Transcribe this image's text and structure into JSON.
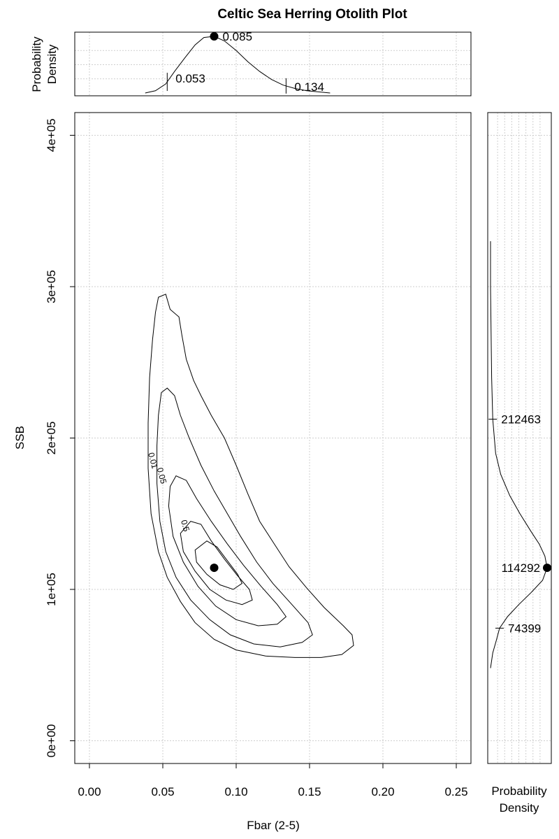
{
  "chart_data": {
    "type": "scatter",
    "title": "Celtic Sea Herring Otolith Plot",
    "xlabel": "Fbar (2-5)",
    "ylabel": "SSB",
    "top_panel_ylabel_line1": "Probability",
    "top_panel_ylabel_line2": "Density",
    "right_panel_xlabel_line1": "Probability",
    "right_panel_xlabel_line2": "Density",
    "xlim": [
      -0.01,
      0.26
    ],
    "ylim": [
      -15000,
      415000
    ],
    "x_ticks": [
      0.0,
      0.05,
      0.1,
      0.15,
      0.2,
      0.25
    ],
    "x_tick_labels": [
      "0.00",
      "0.05",
      "0.10",
      "0.15",
      "0.20",
      "0.25"
    ],
    "y_ticks": [
      0,
      100000,
      200000,
      300000,
      400000
    ],
    "y_tick_labels": [
      "0e+00",
      "1e+05",
      "2e+05",
      "3e+05",
      "4e+05"
    ],
    "grid": true,
    "point_estimate": {
      "fbar": 0.085,
      "ssb": 114292
    },
    "fbar_marginal": {
      "mode": 0.085,
      "mode_label": "0.085",
      "lower": 0.053,
      "lower_label": "0.053",
      "upper": 0.134,
      "upper_label": "0.134",
      "x": [
        0.038,
        0.045,
        0.052,
        0.058,
        0.065,
        0.072,
        0.078,
        0.085,
        0.092,
        0.1,
        0.108,
        0.116,
        0.124,
        0.132,
        0.14,
        0.148,
        0.156,
        0.164
      ],
      "density": [
        0.0,
        0.04,
        0.16,
        0.38,
        0.62,
        0.85,
        0.98,
        1.0,
        0.92,
        0.75,
        0.55,
        0.38,
        0.24,
        0.14,
        0.08,
        0.04,
        0.02,
        0.0
      ]
    },
    "ssb_marginal": {
      "mode": 114292,
      "mode_label": "114292",
      "lower": 74399,
      "lower_label": "74399",
      "upper": 212463,
      "upper_label": "212463",
      "y": [
        48000,
        58000,
        66000,
        74399,
        82000,
        90000,
        98000,
        106000,
        114292,
        122000,
        130000,
        138000,
        150000,
        162000,
        176000,
        190000,
        212463,
        240000,
        270000,
        300000,
        330000
      ],
      "density": [
        0.0,
        0.04,
        0.1,
        0.16,
        0.3,
        0.5,
        0.72,
        0.92,
        1.0,
        0.96,
        0.86,
        0.72,
        0.52,
        0.34,
        0.18,
        0.09,
        0.04,
        0.02,
        0.01,
        0.0,
        0.0
      ]
    },
    "contours": [
      {
        "level": 0.01,
        "label": "0.01",
        "points": [
          [
            0.047,
            293000
          ],
          [
            0.052,
            295000
          ],
          [
            0.055,
            285000
          ],
          [
            0.061,
            280000
          ],
          [
            0.063,
            268000
          ],
          [
            0.066,
            252000
          ],
          [
            0.071,
            238000
          ],
          [
            0.076,
            228000
          ],
          [
            0.083,
            215000
          ],
          [
            0.092,
            200000
          ],
          [
            0.1,
            182000
          ],
          [
            0.108,
            163000
          ],
          [
            0.116,
            145000
          ],
          [
            0.126,
            130000
          ],
          [
            0.136,
            115000
          ],
          [
            0.148,
            101000
          ],
          [
            0.16,
            88000
          ],
          [
            0.173,
            76000
          ],
          [
            0.179,
            70000
          ],
          [
            0.18,
            63000
          ],
          [
            0.172,
            57000
          ],
          [
            0.158,
            55000
          ],
          [
            0.14,
            55000
          ],
          [
            0.12,
            56000
          ],
          [
            0.1,
            60000
          ],
          [
            0.085,
            67000
          ],
          [
            0.072,
            78000
          ],
          [
            0.062,
            92000
          ],
          [
            0.053,
            108000
          ],
          [
            0.047,
            125000
          ],
          [
            0.042,
            150000
          ],
          [
            0.04,
            180000
          ],
          [
            0.04,
            210000
          ],
          [
            0.041,
            240000
          ],
          [
            0.043,
            265000
          ],
          [
            0.045,
            283000
          ],
          [
            0.047,
            293000
          ]
        ]
      },
      {
        "level": 0.05,
        "label": "0.05",
        "points": [
          [
            0.049,
            230000
          ],
          [
            0.053,
            233000
          ],
          [
            0.058,
            228000
          ],
          [
            0.062,
            215000
          ],
          [
            0.068,
            200000
          ],
          [
            0.076,
            182000
          ],
          [
            0.085,
            165000
          ],
          [
            0.094,
            150000
          ],
          [
            0.103,
            135000
          ],
          [
            0.114,
            118000
          ],
          [
            0.125,
            104000
          ],
          [
            0.138,
            90000
          ],
          [
            0.149,
            78000
          ],
          [
            0.152,
            70000
          ],
          [
            0.145,
            65000
          ],
          [
            0.13,
            62000
          ],
          [
            0.112,
            64000
          ],
          [
            0.096,
            70000
          ],
          [
            0.082,
            80000
          ],
          [
            0.069,
            93000
          ],
          [
            0.059,
            108000
          ],
          [
            0.052,
            125000
          ],
          [
            0.048,
            145000
          ],
          [
            0.046,
            170000
          ],
          [
            0.046,
            195000
          ],
          [
            0.047,
            215000
          ],
          [
            0.049,
            230000
          ]
        ]
      },
      {
        "level": 0.2,
        "label": "",
        "points": [
          [
            0.059,
            175000
          ],
          [
            0.066,
            172000
          ],
          [
            0.073,
            160000
          ],
          [
            0.083,
            145000
          ],
          [
            0.094,
            130000
          ],
          [
            0.105,
            116000
          ],
          [
            0.117,
            102000
          ],
          [
            0.128,
            90000
          ],
          [
            0.134,
            82000
          ],
          [
            0.128,
            77000
          ],
          [
            0.115,
            76000
          ],
          [
            0.1,
            80000
          ],
          [
            0.086,
            89000
          ],
          [
            0.074,
            102000
          ],
          [
            0.064,
            118000
          ],
          [
            0.057,
            135000
          ],
          [
            0.054,
            155000
          ],
          [
            0.055,
            168000
          ],
          [
            0.059,
            175000
          ]
        ]
      },
      {
        "level": 0.5,
        "label": "0.5",
        "points": [
          [
            0.069,
            145000
          ],
          [
            0.076,
            143000
          ],
          [
            0.083,
            132000
          ],
          [
            0.092,
            120000
          ],
          [
            0.101,
            109000
          ],
          [
            0.109,
            100000
          ],
          [
            0.111,
            93000
          ],
          [
            0.104,
            90000
          ],
          [
            0.093,
            93000
          ],
          [
            0.082,
            100000
          ],
          [
            0.072,
            112000
          ],
          [
            0.064,
            125000
          ],
          [
            0.062,
            137000
          ],
          [
            0.069,
            145000
          ]
        ]
      },
      {
        "level": 0.8,
        "label": "",
        "points": [
          [
            0.08,
            132000
          ],
          [
            0.087,
            128000
          ],
          [
            0.094,
            119000
          ],
          [
            0.101,
            110000
          ],
          [
            0.104,
            104000
          ],
          [
            0.098,
            100000
          ],
          [
            0.089,
            103000
          ],
          [
            0.08,
            110000
          ],
          [
            0.073,
            118000
          ],
          [
            0.072,
            126000
          ],
          [
            0.08,
            132000
          ]
        ]
      }
    ]
  }
}
